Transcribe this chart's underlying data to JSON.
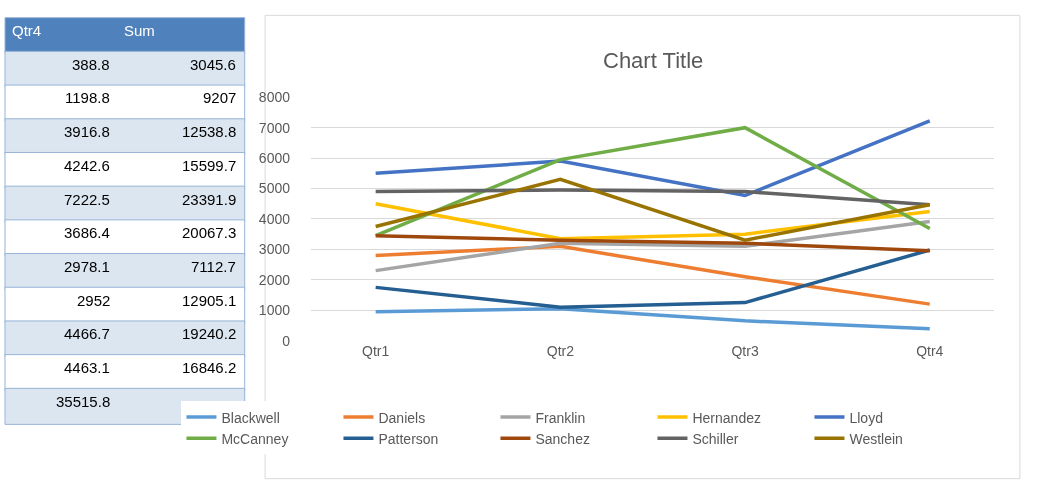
{
  "chart_data": [
    {
      "type": "other",
      "annotations": [
        "Qtr4",
        "Sum",
        "388.8",
        "3045.6",
        "1198.8",
        "9207",
        "3916.8",
        "12538.8",
        "4242.6",
        "15599.7",
        "7222.5",
        "23391.9",
        "3686.4",
        "20067.3",
        "2978.1",
        "7112.7",
        "2952",
        "12905.1",
        "4466.7",
        "19240.2",
        "4463.1",
        "16846.2",
        "35515.8"
      ]
    },
    {
      "type": "line",
      "title": "Chart Title",
      "categories": [
        "Qtr1",
        "Qtr2",
        "Qtr3",
        "Qtr4"
      ],
      "series": [
        {
          "name": "Blackwell",
          "color": "#5b9bd5",
          "values": [
            950,
            1050,
            650,
            388.8
          ]
        },
        {
          "name": "Daniels",
          "color": "#ed7d31",
          "values": [
            2800,
            3100,
            2100,
            1198.8
          ]
        },
        {
          "name": "Franklin",
          "color": "#a5a5a5",
          "values": [
            2300,
            3200,
            3100,
            3916.8
          ]
        },
        {
          "name": "Hernandez",
          "color": "#ffc000",
          "values": [
            4500,
            3350,
            3500,
            4242.6
          ]
        },
        {
          "name": "Lloyd",
          "color": "#4472c4",
          "values": [
            5500,
            5900,
            4770,
            7222.5
          ]
        },
        {
          "name": "McCanney",
          "color": "#70ad47",
          "values": [
            3450,
            5950,
            7000,
            3686.4
          ]
        },
        {
          "name": "Patterson",
          "color": "#255e91",
          "values": [
            1750,
            1100,
            1250,
            2978.1
          ]
        },
        {
          "name": "Sanchez",
          "color": "#9e480e",
          "values": [
            3450,
            3300,
            3200,
            2952
          ]
        },
        {
          "name": "Schiller",
          "color": "#636363",
          "values": [
            4900,
            4950,
            4900,
            4466.7
          ]
        },
        {
          "name": "Westlein",
          "color": "#997300",
          "values": [
            3750,
            5300,
            3300,
            4463.1
          ]
        }
      ],
      "ylim": [
        0,
        8000
      ],
      "yticks": [
        0,
        1000,
        2000,
        3000,
        4000,
        5000,
        6000,
        7000,
        8000
      ],
      "grid": "y",
      "legend": "bottom",
      "marker": "none",
      "line_style": "solid"
    }
  ]
}
